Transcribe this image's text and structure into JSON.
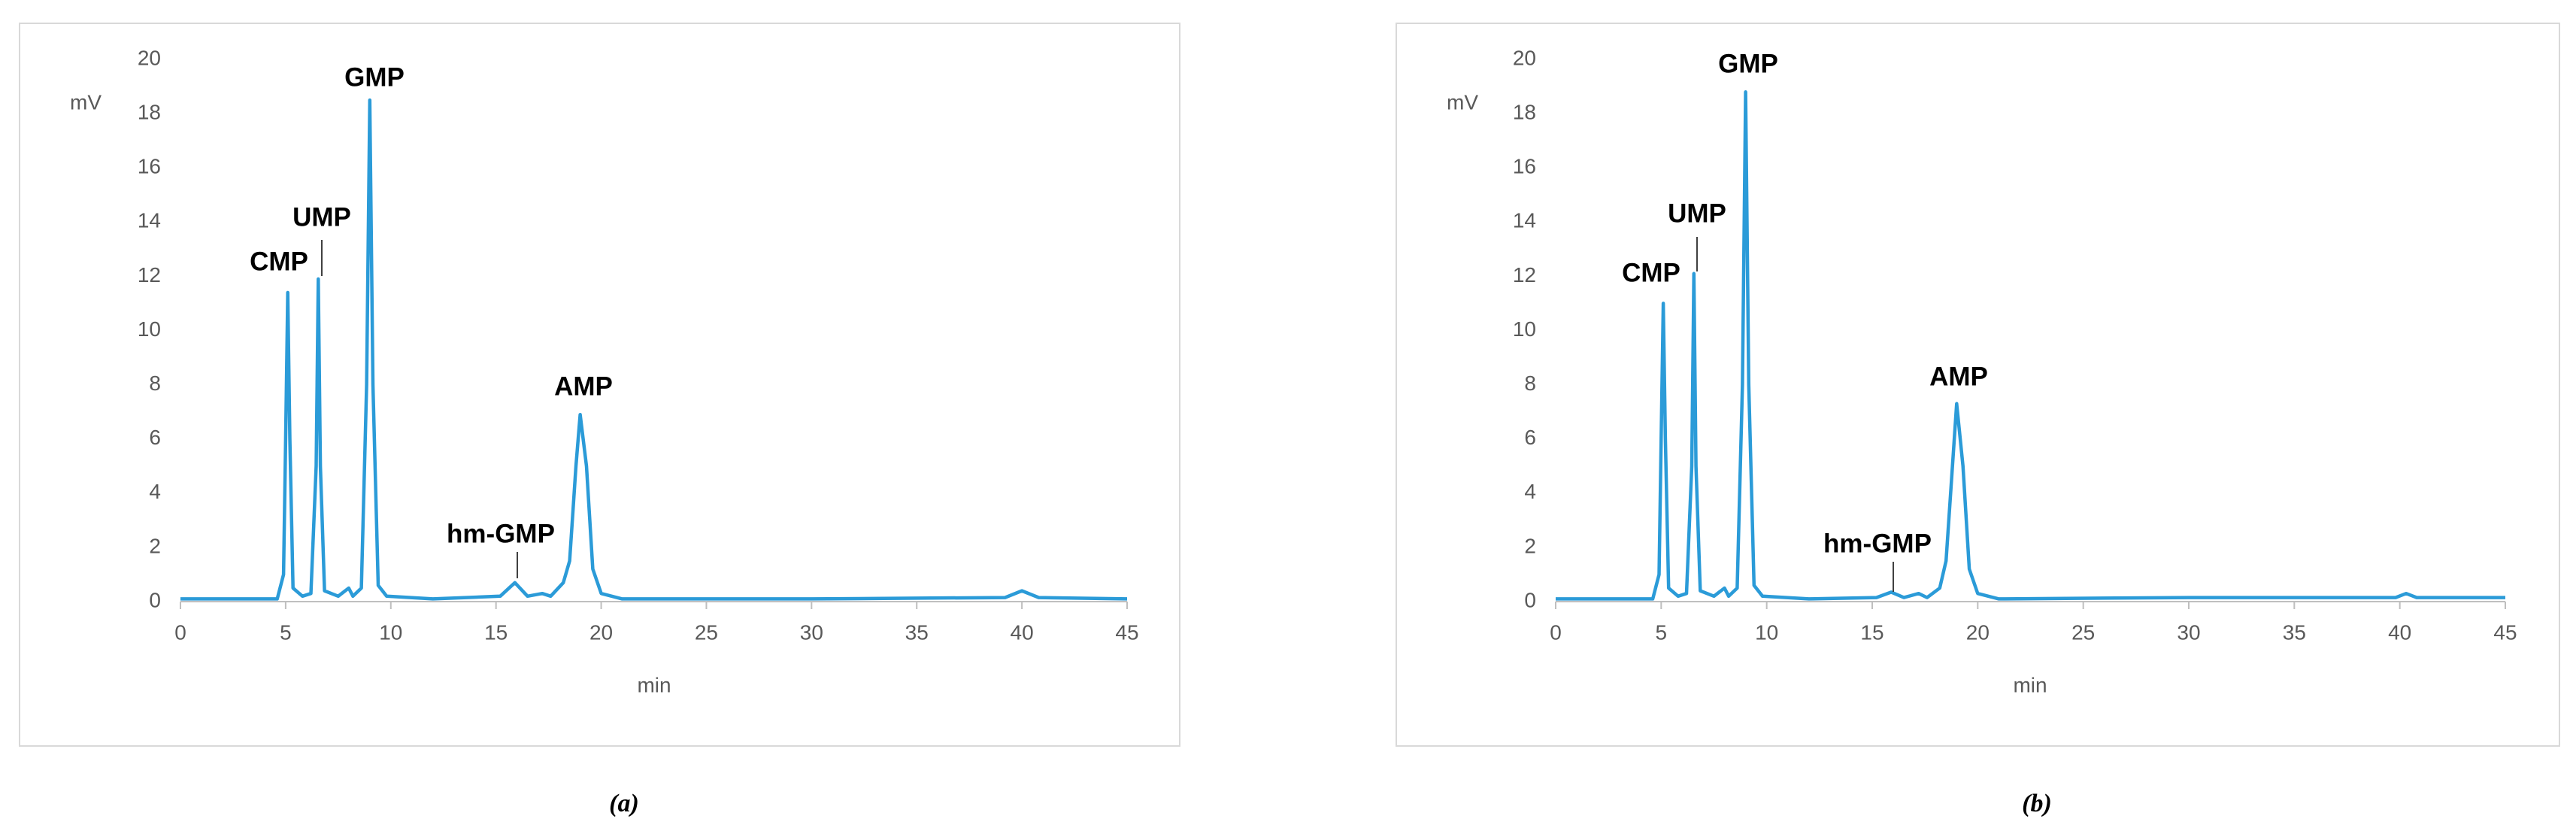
{
  "chart_data": [
    {
      "type": "line",
      "caption": "(a)",
      "y_label": "mV",
      "x_label": "min",
      "color": "#2b9bd8",
      "xlim": [
        0,
        45
      ],
      "xticks": [
        0,
        5,
        10,
        15,
        20,
        25,
        30,
        35,
        40,
        45
      ],
      "ylim": [
        0,
        20
      ],
      "yticks": [
        0,
        2,
        4,
        6,
        8,
        10,
        12,
        14,
        16,
        18,
        20
      ],
      "x": [
        0,
        4.6,
        4.9,
        5.0,
        5.1,
        5.2,
        5.35,
        5.8,
        6.2,
        6.45,
        6.55,
        6.65,
        6.85,
        7.5,
        8.0,
        8.2,
        8.6,
        8.85,
        9.0,
        9.15,
        9.4,
        9.8,
        12,
        15.2,
        15.9,
        16.5,
        17.2,
        17.6,
        18.2,
        18.5,
        18.8,
        19.0,
        19.3,
        19.6,
        20,
        21,
        30,
        39.2,
        40,
        40.8,
        45
      ],
      "values": [
        0.1,
        0.1,
        1,
        6,
        11.4,
        6,
        0.5,
        0.2,
        0.3,
        5,
        11.9,
        5,
        0.4,
        0.2,
        0.5,
        0.2,
        0.5,
        8,
        18.5,
        8,
        0.6,
        0.2,
        0.1,
        0.2,
        0.7,
        0.2,
        0.3,
        0.2,
        0.7,
        1.5,
        5,
        6.9,
        5,
        1.2,
        0.3,
        0.1,
        0.1,
        0.15,
        0.4,
        0.15,
        0.1
      ],
      "annotations": [
        "CMP",
        "UMP",
        "GMP",
        "hm-GMP",
        "AMP"
      ]
    },
    {
      "type": "line",
      "caption": "(b)",
      "y_label": "mV",
      "x_label": "min",
      "color": "#2b9bd8",
      "xlim": [
        0,
        45
      ],
      "xticks": [
        0,
        5,
        10,
        15,
        20,
        25,
        30,
        35,
        40,
        45
      ],
      "ylim": [
        0,
        20
      ],
      "yticks": [
        0,
        2,
        4,
        6,
        8,
        10,
        12,
        14,
        16,
        18,
        20
      ],
      "x": [
        0,
        4.6,
        4.9,
        5.0,
        5.1,
        5.2,
        5.35,
        5.8,
        6.2,
        6.45,
        6.55,
        6.65,
        6.85,
        7.5,
        8.0,
        8.2,
        8.6,
        8.85,
        9.0,
        9.15,
        9.4,
        9.8,
        12,
        15.2,
        15.9,
        16.5,
        17.2,
        17.6,
        18.2,
        18.5,
        18.8,
        19.0,
        19.3,
        19.6,
        20,
        21,
        30,
        39.8,
        40.3,
        40.8,
        45
      ],
      "values": [
        0.1,
        0.1,
        1,
        6,
        11.0,
        6,
        0.5,
        0.2,
        0.3,
        5,
        12.1,
        5,
        0.4,
        0.2,
        0.5,
        0.2,
        0.5,
        8,
        18.8,
        8,
        0.6,
        0.2,
        0.1,
        0.15,
        0.35,
        0.15,
        0.3,
        0.15,
        0.5,
        1.5,
        5,
        7.3,
        5,
        1.2,
        0.3,
        0.1,
        0.15,
        0.15,
        0.3,
        0.15,
        0.15
      ],
      "annotations": [
        "CMP",
        "UMP",
        "GMP",
        "hm-GMP",
        "AMP"
      ]
    }
  ]
}
